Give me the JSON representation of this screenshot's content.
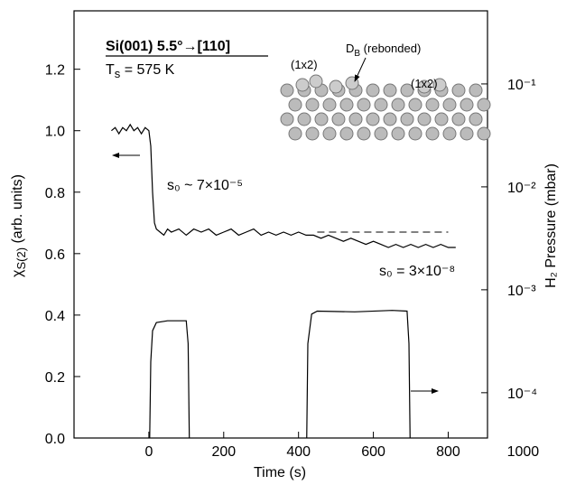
{
  "chart_data": {
    "type": "line",
    "title": "Si(001) 5.5°→[110]",
    "temperature": {
      "symbol": "T",
      "sub": "s",
      "rest": " = 575 K"
    },
    "xlabel": "Time (s)",
    "ylabel": {
      "symbol": "χ",
      "sub": "S(2)",
      "rest": " (arb. units)"
    },
    "y2label": "H₂ Pressure (mbar)",
    "annotations": [
      "s₀ ~ 7×10⁻⁵",
      "s₀ = 3×10⁻⁸"
    ],
    "inset_labels": [
      "(1x2)",
      "(1x2)"
    ],
    "inset_db": {
      "symbol": "D",
      "sub": "B",
      "rest": " (rebonded)"
    },
    "xlim": [
      -200,
      905
    ],
    "xticks": [
      0,
      200,
      400,
      600,
      800,
      1000
    ],
    "ylim": [
      0,
      1.39
    ],
    "yticks": [
      {
        "value": 0,
        "label": "0.0"
      },
      0.2,
      0.4,
      0.6,
      0.8,
      {
        "value": 1,
        "label": "1.0"
      },
      1.2
    ],
    "y2lim": [
      3.63e-05,
      0.513
    ],
    "y2log": true,
    "y2ticks": [
      {
        "value": 0.0001,
        "label": "10⁻⁴"
      },
      {
        "value": 0.001,
        "label": "10⁻³"
      },
      {
        "value": 0.01,
        "label": "10⁻²"
      },
      {
        "value": 0.1,
        "label": "10⁻¹"
      }
    ],
    "reference_line": {
      "value": 0.67,
      "x": [
        450,
        800
      ]
    },
    "series": [
      {
        "axis": "y",
        "color": "#000000",
        "x": [
          -100,
          -90,
          -80,
          -70,
          -60,
          -50,
          -40,
          -30,
          -20,
          -10,
          0,
          5,
          10,
          15,
          20,
          30,
          40,
          50,
          60,
          80,
          100,
          120,
          140,
          160,
          180,
          200,
          220,
          240,
          260,
          280,
          300,
          320,
          340,
          360,
          380,
          400,
          420,
          440,
          460,
          480,
          500,
          520,
          540,
          560,
          580,
          600,
          620,
          640,
          660,
          680,
          700,
          720,
          740,
          760,
          780,
          800,
          820
        ],
        "values": [
          1.0,
          1.01,
          0.99,
          1.01,
          1.0,
          1.02,
          1.0,
          1.01,
          0.99,
          1.01,
          1.0,
          0.95,
          0.8,
          0.7,
          0.68,
          0.67,
          0.66,
          0.68,
          0.67,
          0.68,
          0.66,
          0.68,
          0.67,
          0.68,
          0.66,
          0.67,
          0.68,
          0.66,
          0.67,
          0.68,
          0.66,
          0.67,
          0.66,
          0.67,
          0.66,
          0.67,
          0.66,
          0.66,
          0.65,
          0.66,
          0.65,
          0.64,
          0.65,
          0.64,
          0.63,
          0.64,
          0.63,
          0.62,
          0.63,
          0.62,
          0.63,
          0.62,
          0.63,
          0.62,
          0.63,
          0.62,
          0.62
        ]
      },
      {
        "axis": "y2",
        "color": "#000000",
        "x": [
          0,
          5,
          10,
          20,
          50,
          100,
          105,
          110,
          260,
          420,
          425,
          435,
          450,
          550,
          650,
          690,
          695,
          700
        ],
        "values": [
          1e-05,
          0.0002,
          0.0004,
          0.00048,
          0.0005,
          0.0005,
          0.0003,
          1e-05,
          null,
          1e-05,
          0.0003,
          0.00058,
          0.00062,
          0.00061,
          0.00063,
          0.00062,
          0.0003,
          1e-05
        ]
      }
    ]
  }
}
